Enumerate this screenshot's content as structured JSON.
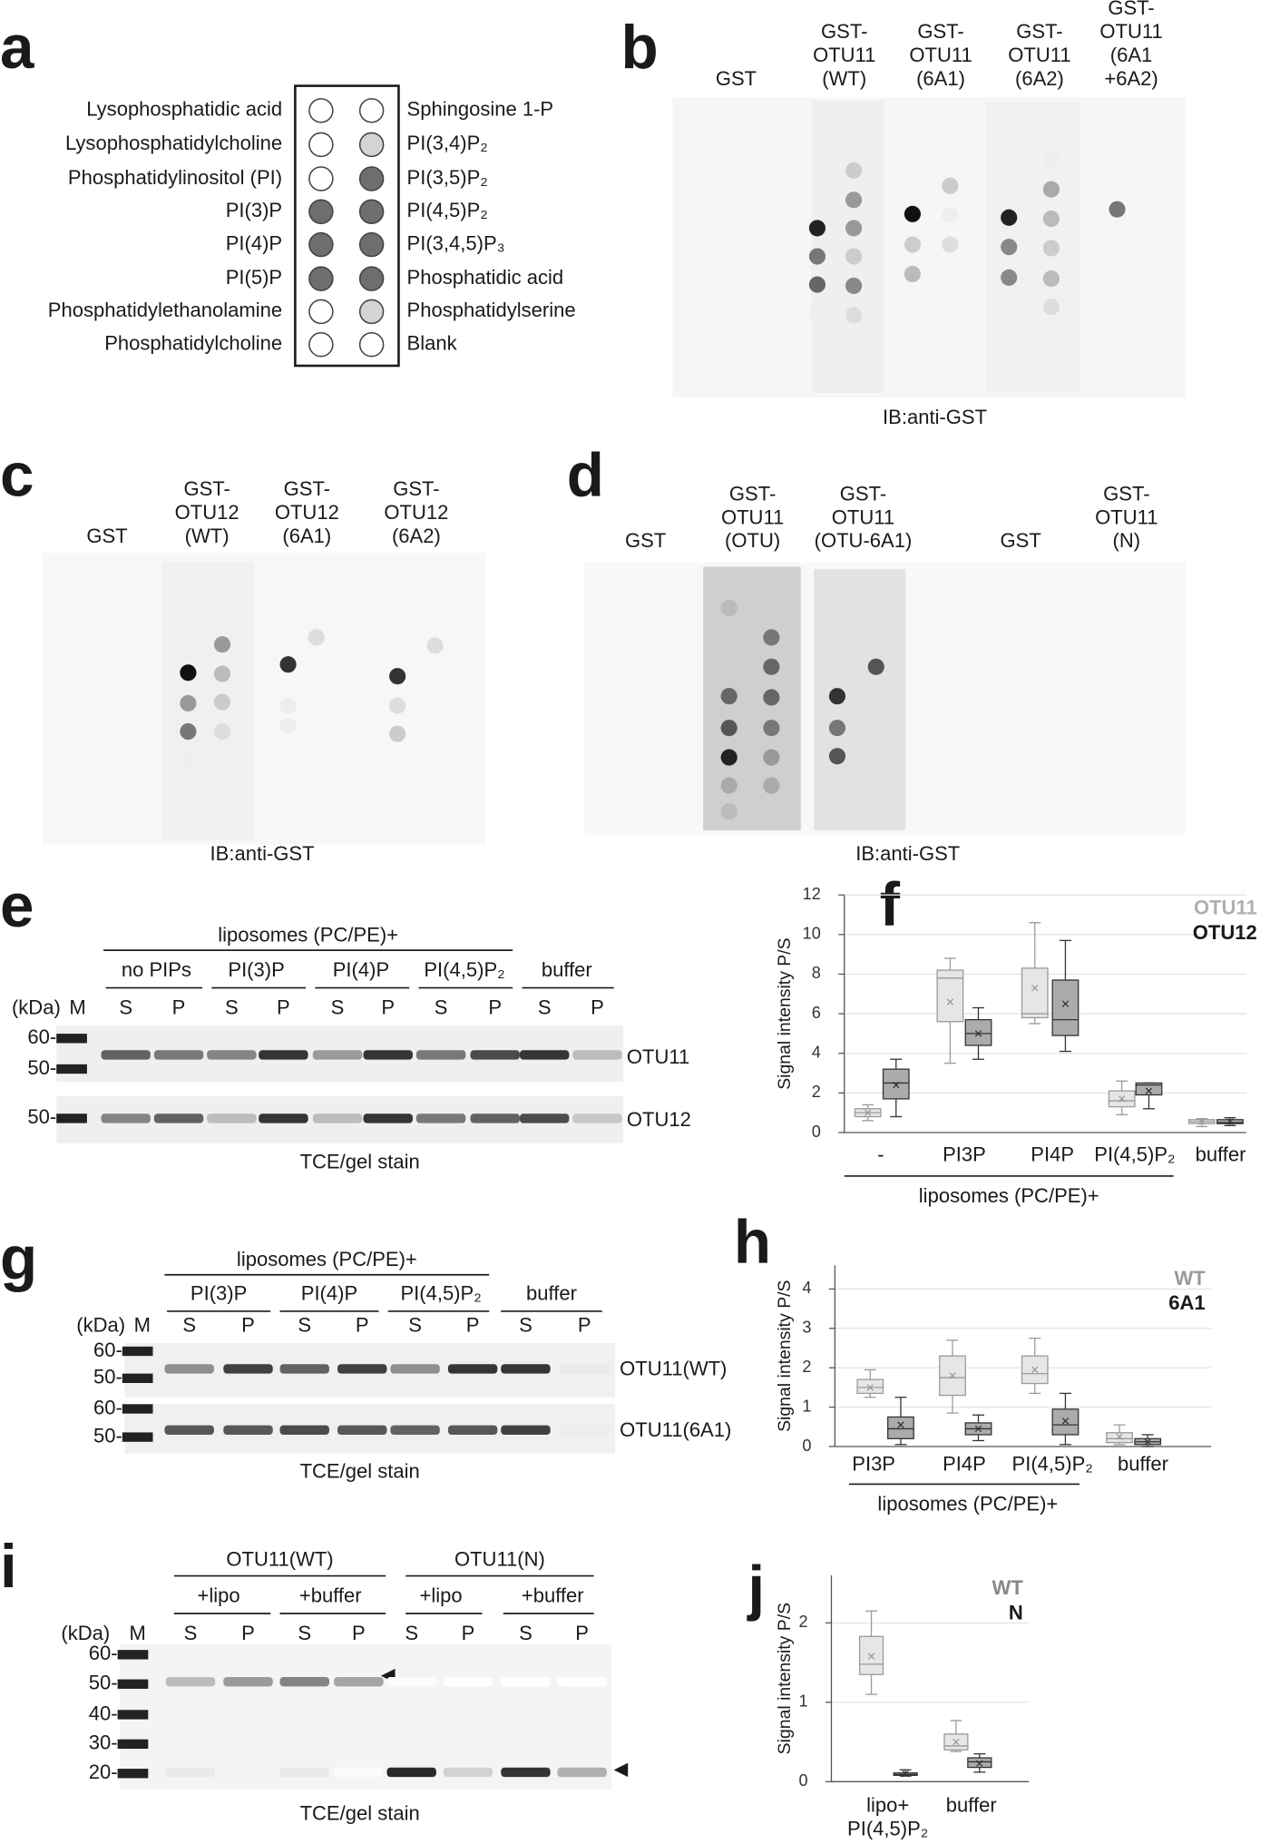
{
  "panels": {
    "a": {
      "letter": "a",
      "left_labels": [
        "Lysophosphatidic acid",
        "Lysophosphatidylcholine",
        "Phosphatidylinositol (PI)",
        "PI(3)P",
        "PI(4)P",
        "PI(5)P",
        "Phosphatidylethanolamine",
        "Phosphatidylcholine"
      ],
      "right_labels": [
        "Sphingosine 1-P",
        "PI(3,4)P₂",
        "PI(3,5)P₂",
        "PI(4,5)P₂",
        "PI(3,4,5)P₃",
        "Phosphatidic acid",
        "Phosphatidylserine",
        "Blank"
      ]
    },
    "b": {
      "letter": "b",
      "lanes": [
        [
          "GST"
        ],
        [
          "GST-",
          "OTU11",
          "(WT)"
        ],
        [
          "GST-",
          "OTU11",
          "(6A1)"
        ],
        [
          "GST-",
          "OTU11",
          "(6A2)"
        ],
        [
          "GST-",
          "OTU11",
          "(6A1",
          "+6A2)"
        ]
      ],
      "caption": "IB:anti-GST"
    },
    "c": {
      "letter": "c",
      "lanes": [
        [
          "GST"
        ],
        [
          "GST-",
          "OTU12",
          "(WT)"
        ],
        [
          "GST-",
          "OTU12",
          "(6A1)"
        ],
        [
          "GST-",
          "OTU12",
          "(6A2)"
        ]
      ],
      "caption": "IB:anti-GST"
    },
    "d": {
      "letter": "d",
      "lanes": [
        [
          "GST"
        ],
        [
          "GST-",
          "OTU11",
          "(OTU)"
        ],
        [
          "GST-",
          "OTU11",
          "(OTU-6A1)"
        ],
        [
          "GST"
        ],
        [
          "GST-",
          "OTU11",
          "(N)"
        ]
      ],
      "caption": "IB:anti-GST"
    },
    "e": {
      "letter": "e",
      "header": "liposomes (PC/PE)+",
      "groups": [
        "no PIPs",
        "PI(3)P",
        "PI(4)P",
        "PI(4,5)P₂",
        "buffer"
      ],
      "fractions": [
        "S",
        "P"
      ],
      "units": "(kDa)",
      "marker": "M",
      "ladder": [
        "60-",
        "50-",
        "50-"
      ],
      "proteins": [
        "OTU11",
        "OTU12"
      ],
      "caption": "TCE/gel stain"
    },
    "g": {
      "letter": "g",
      "header": "liposomes (PC/PE)+",
      "groups": [
        "PI(3)P",
        "PI(4)P",
        "PI(4,5)P₂",
        "buffer"
      ],
      "fractions": [
        "S",
        "P"
      ],
      "units": "(kDa)",
      "marker": "M",
      "ladder": [
        "60-",
        "50-",
        "60-",
        "50-"
      ],
      "proteins": [
        "OTU11(WT)",
        "OTU11(6A1)"
      ],
      "caption": "TCE/gel stain"
    },
    "i": {
      "letter": "i",
      "proteins": [
        "OTU11(WT)",
        "OTU11(N)"
      ],
      "groups": [
        "+lipo",
        "+buffer",
        "+lipo",
        "+buffer"
      ],
      "fractions": [
        "S",
        "P"
      ],
      "units": "(kDa)",
      "marker": "M",
      "ladder": [
        "60-",
        "50-",
        "40-",
        "30-",
        "20-"
      ],
      "caption": "TCE/gel stain"
    }
  },
  "chart_data": [
    {
      "type": "box",
      "letter": "f",
      "y_label": "Signal intensity P/S",
      "group_label": "liposomes (PC/PE)+",
      "categories": [
        "-",
        "PI3P",
        "PI4P",
        "PI(4,5)P₂",
        "buffer"
      ],
      "ylim": [
        0,
        12
      ],
      "yticks": [
        0,
        2,
        4,
        6,
        8,
        10,
        12
      ],
      "grid": true,
      "series": [
        {
          "name": "OTU11",
          "color": "#e6e6e6",
          "edge": "#9a9a9a",
          "label_color": "#b0b0b0",
          "values": [
            {
              "min": 0.6,
              "q1": 0.8,
              "median": 1.0,
              "q3": 1.2,
              "max": 1.4,
              "mean": 1.0
            },
            {
              "min": 3.5,
              "q1": 5.6,
              "median": 7.8,
              "q3": 8.2,
              "max": 8.8,
              "mean": 6.6
            },
            {
              "min": 5.5,
              "q1": 5.8,
              "median": 6.0,
              "q3": 8.3,
              "max": 10.6,
              "mean": 7.3
            },
            {
              "min": 0.9,
              "q1": 1.3,
              "median": 1.6,
              "q3": 2.1,
              "max": 2.6,
              "mean": 1.7
            },
            {
              "min": 0.3,
              "q1": 0.45,
              "median": 0.55,
              "q3": 0.65,
              "max": 0.7,
              "mean": 0.55
            }
          ]
        },
        {
          "name": "OTU12",
          "color": "#ababab",
          "edge": "#333333",
          "label_color": "#1a1a1a",
          "values": [
            {
              "min": 0.8,
              "q1": 1.7,
              "median": 2.5,
              "q3": 3.2,
              "max": 3.7,
              "mean": 2.4
            },
            {
              "min": 3.7,
              "q1": 4.4,
              "median": 5.0,
              "q3": 5.7,
              "max": 6.3,
              "mean": 5.0
            },
            {
              "min": 4.1,
              "q1": 4.9,
              "median": 5.7,
              "q3": 7.7,
              "max": 9.7,
              "mean": 6.5
            },
            {
              "min": 1.2,
              "q1": 1.9,
              "median": 2.4,
              "q3": 2.5,
              "max": 2.5,
              "mean": 2.1
            },
            {
              "min": 0.35,
              "q1": 0.45,
              "median": 0.5,
              "q3": 0.65,
              "max": 0.75,
              "mean": 0.55
            }
          ]
        }
      ]
    },
    {
      "type": "box",
      "letter": "h",
      "y_label": "Signal intensity P/S",
      "group_label": "liposomes (PC/PE)+",
      "categories": [
        "PI3P",
        "PI4P",
        "PI(4,5)P₂",
        "buffer"
      ],
      "ylim": [
        0,
        4.6
      ],
      "yticks": [
        0,
        1,
        2,
        3,
        4
      ],
      "grid": true,
      "series": [
        {
          "name": "WT",
          "color": "#e6e6e6",
          "edge": "#9a9a9a",
          "label_color": "#9a9a9a",
          "values": [
            {
              "min": 1.25,
              "q1": 1.35,
              "median": 1.5,
              "q3": 1.7,
              "max": 1.95,
              "mean": 1.5
            },
            {
              "min": 0.85,
              "q1": 1.3,
              "median": 1.75,
              "q3": 2.3,
              "max": 2.7,
              "mean": 1.8
            },
            {
              "min": 1.35,
              "q1": 1.6,
              "median": 1.85,
              "q3": 2.3,
              "max": 2.75,
              "mean": 1.95
            },
            {
              "min": 0.05,
              "q1": 0.1,
              "median": 0.2,
              "q3": 0.35,
              "max": 0.55,
              "mean": 0.25
            }
          ]
        },
        {
          "name": "6A1",
          "color": "#ababab",
          "edge": "#333333",
          "label_color": "#1a1a1a",
          "values": [
            {
              "min": 0.05,
              "q1": 0.2,
              "median": 0.45,
              "q3": 0.75,
              "max": 1.25,
              "mean": 0.55
            },
            {
              "min": 0.15,
              "q1": 0.3,
              "median": 0.45,
              "q3": 0.6,
              "max": 0.8,
              "mean": 0.45
            },
            {
              "min": 0.05,
              "q1": 0.3,
              "median": 0.55,
              "q3": 0.95,
              "max": 1.35,
              "mean": 0.65
            },
            {
              "min": 0.0,
              "q1": 0.05,
              "median": 0.12,
              "q3": 0.2,
              "max": 0.3,
              "mean": 0.12
            }
          ]
        }
      ]
    },
    {
      "type": "box",
      "letter": "j",
      "y_label": "Signal intensity P/S",
      "categories": [
        "lipo+\nPI(4,5)P₂",
        "buffer"
      ],
      "ylim": [
        0,
        2.6
      ],
      "yticks": [
        0,
        1,
        2
      ],
      "grid": true,
      "series": [
        {
          "name": "WT",
          "color": "#e6e6e6",
          "edge": "#9a9a9a",
          "label_color": "#888888",
          "values": [
            {
              "min": 1.1,
              "q1": 1.35,
              "median": 1.48,
              "q3": 1.83,
              "max": 2.15,
              "mean": 1.58
            },
            {
              "min": 0.38,
              "q1": 0.4,
              "median": 0.45,
              "q3": 0.6,
              "max": 0.77,
              "mean": 0.5
            }
          ]
        },
        {
          "name": "N",
          "color": "#ababab",
          "edge": "#333333",
          "label_color": "#1a1a1a",
          "values": [
            {
              "min": 0.07,
              "q1": 0.08,
              "median": 0.09,
              "q3": 0.11,
              "max": 0.15,
              "mean": 0.1
            },
            {
              "min": 0.12,
              "q1": 0.18,
              "median": 0.25,
              "q3": 0.3,
              "max": 0.35,
              "mean": 0.23
            }
          ]
        }
      ]
    }
  ]
}
